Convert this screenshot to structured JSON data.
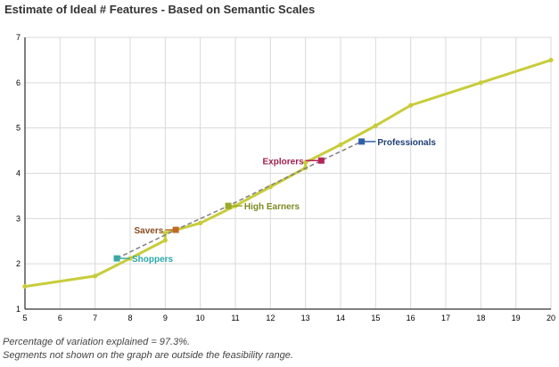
{
  "colors": {
    "trend": "#c8cc3a",
    "grid": "#d9d9d9",
    "axis": "#000000",
    "dashed": "#808080"
  },
  "chart_data": {
    "type": "line",
    "title": "Estimate of Ideal # Features - Based on Semantic Scales",
    "xlabel": "",
    "ylabel": "",
    "xlim": [
      5,
      20
    ],
    "ylim": [
      1,
      7
    ],
    "xticks": [
      5,
      6,
      7,
      8,
      9,
      10,
      11,
      12,
      13,
      14,
      15,
      16,
      17,
      18,
      19,
      20
    ],
    "yticks": [
      1,
      2,
      3,
      4,
      5,
      6,
      7
    ],
    "grid": true,
    "series": [
      {
        "color": "#c8cc3a",
        "points": [
          [
            5,
            1.5
          ],
          [
            7,
            1.73
          ],
          [
            8,
            2.12
          ],
          [
            9,
            2.52
          ],
          [
            9,
            2.68
          ],
          [
            10,
            2.9
          ],
          [
            11,
            3.28
          ],
          [
            12,
            3.7
          ],
          [
            13,
            4.12
          ],
          [
            13,
            4.24
          ],
          [
            14,
            4.63
          ],
          [
            15,
            5.05
          ],
          [
            16,
            5.5
          ],
          [
            18,
            6.0
          ],
          [
            20,
            6.5
          ]
        ]
      }
    ],
    "segments": [
      {
        "label": "Shoppers",
        "color": "#3aa8a4",
        "label_color": "#2aa8a8",
        "x": 7.62,
        "y": 2.12,
        "line_to": [
          8.0,
          2.12
        ]
      },
      {
        "label": "Savers",
        "color": "#c06a2a",
        "label_color": "#8b4a1c",
        "x": 9.3,
        "y": 2.75,
        "line_to": [
          9.0,
          2.75
        ]
      },
      {
        "label": "High Earners",
        "color": "#9aaa2a",
        "label_color": "#7d8a22",
        "x": 10.8,
        "y": 3.28,
        "line_to": [
          11.2,
          3.28
        ]
      },
      {
        "label": "Explorers",
        "color": "#b5235a",
        "label_color": "#a0204c",
        "x": 13.45,
        "y": 4.28,
        "line_to": [
          13.0,
          4.28
        ]
      },
      {
        "label": "Professionals",
        "color": "#2f5fa8",
        "label_color": "#1f3f78",
        "x": 14.6,
        "y": 4.7,
        "line_to": [
          15.0,
          4.7
        ]
      }
    ],
    "dashed_connector": [
      [
        7.62,
        2.12
      ],
      [
        9.3,
        2.75
      ],
      [
        10.8,
        3.28
      ],
      [
        13.45,
        4.28
      ],
      [
        14.6,
        4.7
      ]
    ]
  },
  "notes": {
    "variation": "Percentage of variation explained = 97.3%.",
    "segments": "Segments not shown on the graph are outside the feasibility range."
  }
}
